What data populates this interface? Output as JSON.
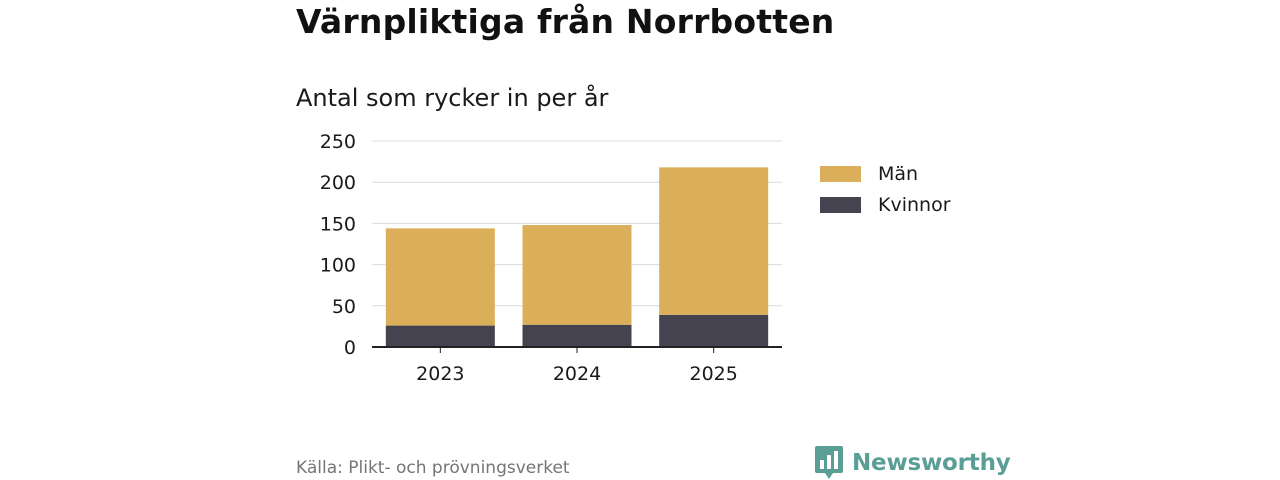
{
  "header": {
    "title": "Värnpliktiga från Norrbotten",
    "subtitle": "Antal som rycker in per år"
  },
  "chart_data": {
    "type": "bar",
    "stacked": true,
    "title": "Värnpliktiga från Norrbotten",
    "subtitle": "Antal som rycker in per år",
    "categories": [
      "2023",
      "2024",
      "2025"
    ],
    "series": [
      {
        "name": "Kvinnor",
        "values": [
          26,
          27,
          39
        ],
        "color": "#45434f"
      },
      {
        "name": "Män",
        "values": [
          118,
          121,
          179
        ],
        "color": "#dbaf5a"
      }
    ],
    "yticks": [
      0,
      50,
      100,
      150,
      200,
      250
    ],
    "ylim": [
      0,
      250
    ],
    "xlabel": "",
    "ylabel": "",
    "grid": true,
    "legend_position": "right",
    "legend_order": [
      "Män",
      "Kvinnor"
    ]
  },
  "footer": {
    "source": "Källa: Plikt- och prövningsverket",
    "brand": "Newsworthy",
    "brand_color": "#5a9e95",
    "brand_icon": "bar-chart-icon"
  }
}
